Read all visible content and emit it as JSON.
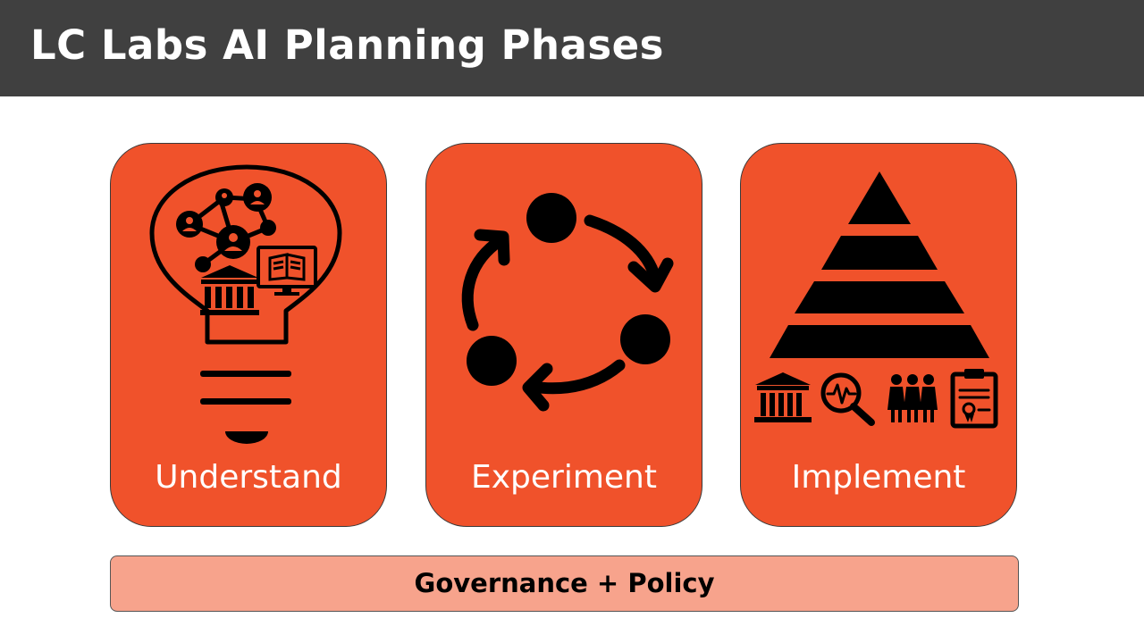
{
  "slide": {
    "title": "LC Labs AI Planning Phases"
  },
  "phases": [
    {
      "label": "Understand",
      "icon": "lightbulb-network-icon"
    },
    {
      "label": "Experiment",
      "icon": "cycle-arrows-icon"
    },
    {
      "label": "Implement",
      "icon": "pyramid-icon"
    }
  ],
  "footer": {
    "label": "Governance + Policy"
  },
  "colors": {
    "header_bg": "#404040",
    "card_fill": "#F0522B",
    "bar_fill": "#F7A38C",
    "icon": "#000000",
    "label_text": "#FFFFFF"
  }
}
